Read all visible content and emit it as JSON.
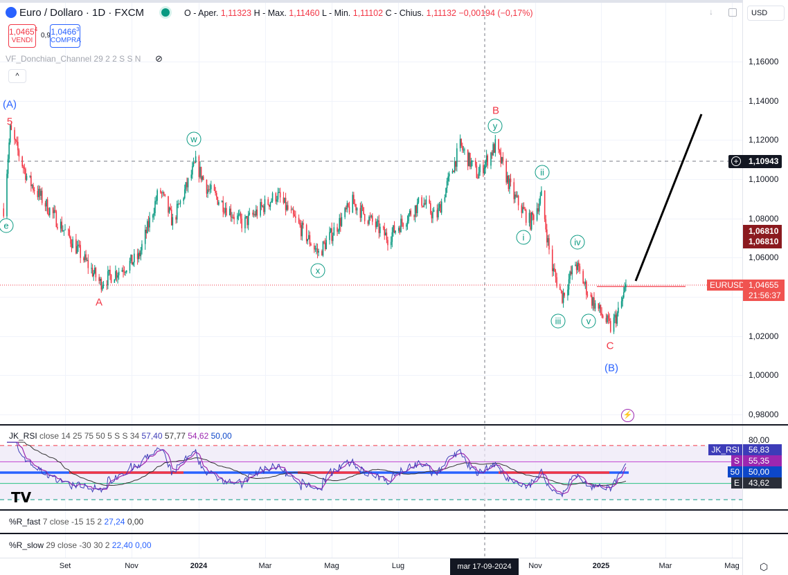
{
  "header": {
    "symbol": "Euro / Dollaro · 1D · FXCM",
    "open_label": "O - Aper.",
    "open": "1,11323",
    "high_label": "H - Max.",
    "high": "1,11460",
    "low_label": "L - Min.",
    "low": "1,11102",
    "close_label": "C - Chius.",
    "close": "1,11132",
    "change": "−0,00194 (−0,17%)",
    "sell_price": "1,0465",
    "sell_sup": "4",
    "sell_label": "VENDI",
    "spread": "0,9",
    "buy_price": "1,0466",
    "buy_sup": "3",
    "buy_label": "COMPRA",
    "indicator": "VF_Donchian_Channel 29 2 2 S S N",
    "currency": "USD"
  },
  "price_axis": [
    "1,16000",
    "1,14000",
    "1,12000",
    "1,10000",
    "1,08000",
    "1,06000",
    "1,02000",
    "1,00000",
    "0,98000"
  ],
  "price_tags": {
    "crosshair": "1,10943",
    "alert_1": "1,06810",
    "alert_2": "1,06810",
    "symbol": "EURUSD",
    "last": "1,04655",
    "countdown": "21:56:37"
  },
  "time_axis": [
    "Set",
    "Nov",
    "2024",
    "Mar",
    "Mag",
    "Lug",
    "Nov",
    "2025",
    "Mar",
    "Mag"
  ],
  "crosshair_date": "mar 17-09-2024",
  "wave_labels": {
    "A_major": "(A)",
    "five": "5",
    "e": "e",
    "A": "A",
    "w": "w",
    "x": "x",
    "B": "B",
    "y": "y",
    "ii": "ii",
    "i": "i",
    "iv": "iv",
    "iii": "iii",
    "v": "v",
    "C": "C",
    "B_major": "(B)"
  },
  "rsi": {
    "name": "JK_RSI",
    "params": "close 14 25 75 50 5 S S 34",
    "v1": "57,40",
    "v2": "57,77",
    "v3": "54,62",
    "v4": "50,00",
    "axis_top": "80,00",
    "tags": [
      {
        "label": "JK_RSI",
        "value": "56,83",
        "color": "#3d3cb8"
      },
      {
        "label": "S",
        "value": "55,35",
        "color": "#9c27b0"
      },
      {
        "label": "50",
        "value": "50,00",
        "color": "#0d47c9"
      },
      {
        "label": "E",
        "value": "43,62",
        "color": "#2a2e39"
      }
    ]
  },
  "r_fast": {
    "name": "%R_fast",
    "params": "7 close -15 15 2",
    "v1": "27,24",
    "v2": "0,00"
  },
  "r_slow": {
    "name": "%R_slow",
    "params": "29 close -30 30 2",
    "v1": "22,40",
    "v2": "0,00"
  },
  "colors": {
    "up": "#089981",
    "down": "#f23645",
    "accent": "#2962ff"
  },
  "chart_data": {
    "type": "candlestick",
    "title": "EUR/USD 1D FXCM",
    "ylim": [
      0.975,
      1.17
    ],
    "path": [
      [
        "2023-07-07",
        1.085
      ],
      [
        "2023-07-13",
        1.125
      ],
      [
        "2023-07-29",
        1.1
      ],
      [
        "2023-09-05",
        1.07
      ],
      [
        "2023-10-03",
        1.047
      ],
      [
        "2023-11-07",
        1.06
      ],
      [
        "2023-11-26",
        1.095
      ],
      [
        "2023-12-08",
        1.078
      ],
      [
        "2023-12-29",
        1.108
      ],
      [
        "2024-01-09",
        1.095
      ],
      [
        "2024-02-10",
        1.077
      ],
      [
        "2024-03-12",
        1.092
      ],
      [
        "2024-04-19",
        1.062
      ],
      [
        "2024-05-20",
        1.088
      ],
      [
        "2024-06-21",
        1.07
      ],
      [
        "2024-07-22",
        1.089
      ],
      [
        "2024-08-04",
        1.08
      ],
      [
        "2024-08-26",
        1.117
      ],
      [
        "2024-09-11",
        1.102
      ],
      [
        "2024-09-27",
        1.117
      ],
      [
        "2024-10-13",
        1.092
      ],
      [
        "2024-10-29",
        1.078
      ],
      [
        "2024-11-08",
        1.091
      ],
      [
        "2024-11-17",
        1.056
      ],
      [
        "2024-11-27",
        1.04
      ],
      [
        "2024-12-09",
        1.057
      ],
      [
        "2024-12-22",
        1.04
      ],
      [
        "2025-01-03",
        1.03
      ],
      [
        "2025-01-10",
        1.024
      ],
      [
        "2025-01-18",
        1.033
      ],
      [
        "2025-01-25",
        1.0466
      ]
    ],
    "projection": {
      "from": [
        "2025-01-28",
        1.05
      ],
      "to": [
        "2025-03-01",
        1.135
      ]
    }
  }
}
